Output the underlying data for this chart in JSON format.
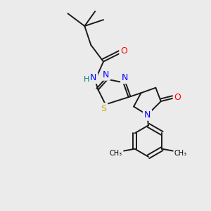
{
  "background_color": "#ebebeb",
  "atom_colors": {
    "C": "#000000",
    "N": "#0000ff",
    "O": "#ff0000",
    "S": "#ccaa00",
    "H": "#008080"
  },
  "bond_color": "#1a1a1a",
  "bond_width": 1.4,
  "figsize": [
    3.0,
    3.0
  ],
  "dpi": 100
}
